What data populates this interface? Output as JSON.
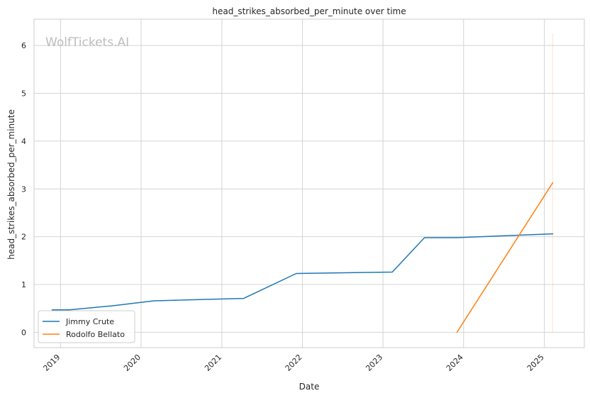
{
  "chart_data": {
    "type": "line",
    "title": "head_strikes_absorbed_per_minute over time",
    "xlabel": "Date",
    "ylabel": "head_strikes_absorbed_per_minute",
    "watermark": "WolfTickets.AI",
    "x_ticks": [
      "2019",
      "2020",
      "2021",
      "2022",
      "2023",
      "2024",
      "2025"
    ],
    "y_ticks": [
      "0",
      "1",
      "2",
      "3",
      "4",
      "5",
      "6"
    ],
    "xlim": [
      "2018-09-03",
      "2025-07-01"
    ],
    "ylim": [
      -0.32,
      6.55
    ],
    "grid": true,
    "legend_position": "lower-left",
    "series": [
      {
        "name": "Jimmy Crute",
        "color": "#1f77b4",
        "points": [
          {
            "x": "2018-11-24",
            "y": 0.47
          },
          {
            "x": "2019-02-10",
            "y": 0.47
          },
          {
            "x": "2019-09-01",
            "y": 0.56
          },
          {
            "x": "2020-02-29",
            "y": 0.66
          },
          {
            "x": "2021-04-10",
            "y": 0.71
          },
          {
            "x": "2021-12-04",
            "y": 1.23
          },
          {
            "x": "2023-02-12",
            "y": 1.26
          },
          {
            "x": "2023-07-08",
            "y": 1.98
          },
          {
            "x": "2023-12-01",
            "y": 1.98
          },
          {
            "x": "2025-02-08",
            "y": 2.06
          }
        ]
      },
      {
        "name": "Rodolfo Bellato",
        "color": "#ff7f0e",
        "points": [
          {
            "x": "2023-12-02",
            "y": 0.0
          },
          {
            "x": "2025-02-08",
            "y": 3.13
          }
        ]
      }
    ],
    "annotations": [
      {
        "type": "vertical-line",
        "x": "2025-02-08",
        "y_range": [
          0,
          6.25
        ],
        "color": "#ff7f0e",
        "opacity": 0.2
      }
    ]
  }
}
